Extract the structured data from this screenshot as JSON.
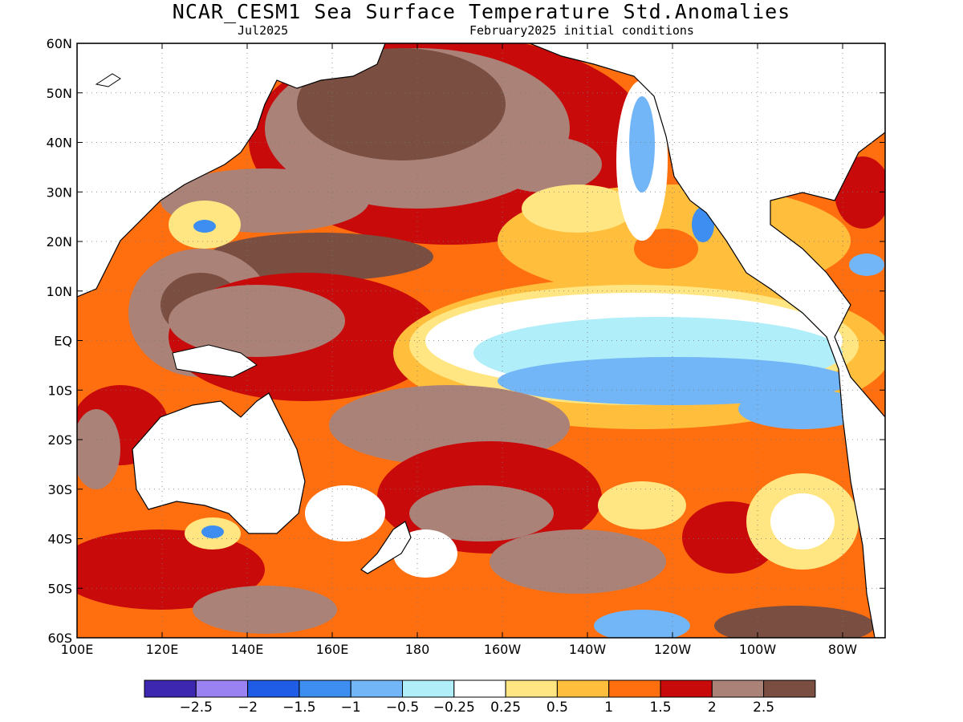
{
  "title": "NCAR_CESM1 Sea Surface Temperature Std.Anomalies",
  "subtitle_left": "Jul2025",
  "subtitle_right": "February2025 initial conditions",
  "lat_ticks": [
    "60N",
    "50N",
    "40N",
    "30N",
    "20N",
    "10N",
    "EQ",
    "10S",
    "20S",
    "30S",
    "40S",
    "50S",
    "60S"
  ],
  "lon_ticks": [
    "100E",
    "120E",
    "140E",
    "160E",
    "180",
    "160W",
    "140W",
    "120W",
    "100W",
    "80W"
  ],
  "colorbar": {
    "colors": [
      "#3d26b0",
      "#9a82f2",
      "#1f5de6",
      "#3d8ef0",
      "#73b6f7",
      "#b0eefa",
      "#ffffff",
      "#ffe682",
      "#ffbe3c",
      "#ff6e0f",
      "#c80a0a",
      "#aa8278",
      "#7a4e40"
    ],
    "labels": [
      "−2.5",
      "−2",
      "−1.5",
      "−1",
      "−0.5",
      "−0.25",
      "0.25",
      "0.5",
      "1",
      "1.5",
      "2",
      "2.5"
    ]
  },
  "legend_bins": {
    "neg_2_5": "#3d26b0",
    "neg_2": "#9a82f2",
    "neg_1_5": "#1f5de6",
    "neg_1": "#3d8ef0",
    "neg_0_5": "#73b6f7",
    "neg_0_25": "#b0eefa",
    "neutral": "#ffffff",
    "pos_0_25": "#ffe682",
    "pos_0_5": "#ffbe3c",
    "pos_1": "#ff6e0f",
    "pos_1_5": "#c80a0a",
    "pos_2": "#aa8278",
    "pos_2_5": "#7a4e40"
  }
}
